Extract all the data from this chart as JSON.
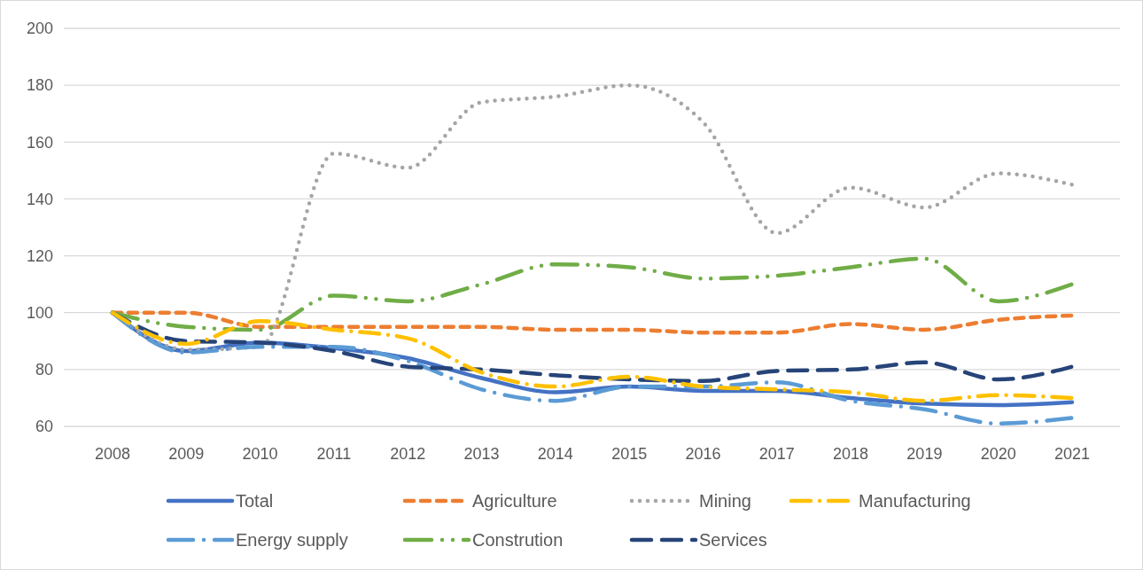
{
  "chart_data": {
    "type": "line",
    "categories": [
      "2008",
      "2009",
      "2010",
      "2011",
      "2012",
      "2013",
      "2014",
      "2015",
      "2016",
      "2017",
      "2018",
      "2019",
      "2020",
      "2021"
    ],
    "ylim": [
      60,
      200
    ],
    "yticks": [
      60,
      80,
      100,
      120,
      140,
      160,
      180,
      200
    ],
    "grid": "y",
    "legend": "bottom",
    "series": [
      {
        "name": "Total",
        "color": "#4472c4",
        "line_style": "solid",
        "values": [
          100,
          86.5,
          89.5,
          87.5,
          84,
          77,
          72,
          74,
          72.5,
          72.5,
          70,
          68,
          67.5,
          68.5
        ]
      },
      {
        "name": "Agriculture",
        "color": "#ed7d31",
        "line_style": "dashed",
        "values": [
          100,
          100,
          95,
          95,
          95,
          95,
          94,
          94,
          93,
          93,
          96,
          94,
          97.5,
          99
        ]
      },
      {
        "name": "Mining",
        "color": "#a5a5a5",
        "line_style": "dotted",
        "values": [
          100,
          87,
          88,
          156,
          151,
          174,
          176,
          180,
          167,
          128,
          144,
          137,
          149,
          145
        ]
      },
      {
        "name": "Manufacturing",
        "color": "#ffc000",
        "line_style": "dashdot",
        "values": [
          100,
          89,
          97,
          94,
          91,
          79,
          74,
          77.5,
          74,
          73,
          72,
          69,
          71,
          70
        ]
      },
      {
        "name": "Energy supply",
        "color": "#5b9bd5",
        "line_style": "longdashdot",
        "values": [
          100,
          86,
          88,
          88,
          83,
          73,
          69,
          74,
          74,
          75.5,
          69,
          66,
          61,
          63
        ]
      },
      {
        "name": "Constrution",
        "color": "#70ad47",
        "line_style": "longdashdotdot",
        "values": [
          100,
          95,
          94,
          106,
          104,
          110,
          117,
          116,
          112,
          113,
          116,
          119,
          104,
          110
        ]
      },
      {
        "name": "Services",
        "color": "#264478",
        "line_style": "longdash",
        "values": [
          100,
          90,
          89.5,
          86.5,
          81,
          80,
          78,
          76.5,
          76,
          79.5,
          80,
          82.5,
          76.5,
          81
        ]
      }
    ]
  }
}
